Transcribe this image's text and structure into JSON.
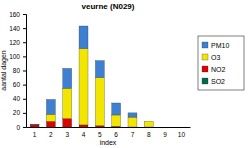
{
  "chart_data": {
    "type": "bar",
    "stacked": true,
    "title": "veurne (N029)",
    "x_label": "index",
    "y_label": "aantal dagen",
    "categories": [
      "1",
      "2",
      "3",
      "4",
      "5",
      "6",
      "7",
      "8",
      "9",
      "10"
    ],
    "series": [
      {
        "name": "SO2",
        "color": "#006a4e",
        "values": [
          0,
          0,
          0,
          0,
          0,
          0,
          0,
          0,
          0,
          0
        ]
      },
      {
        "name": "NO2",
        "color": "#e00000",
        "values": [
          3,
          8,
          12,
          3,
          2,
          1,
          0,
          0,
          0,
          0
        ]
      },
      {
        "name": "O3",
        "color": "#f2e600",
        "values": [
          0,
          10,
          43,
          108,
          68,
          16,
          14,
          8,
          0,
          0
        ]
      },
      {
        "name": "PM10",
        "color": "#3d7fd1",
        "values": [
          1,
          21,
          28,
          32,
          24,
          17,
          6,
          0,
          0,
          0
        ]
      }
    ],
    "ylim": [
      0,
      160
    ],
    "yticks": [
      0,
      20,
      40,
      60,
      80,
      100,
      120,
      140,
      160
    ],
    "legend": "right",
    "grid": false
  }
}
